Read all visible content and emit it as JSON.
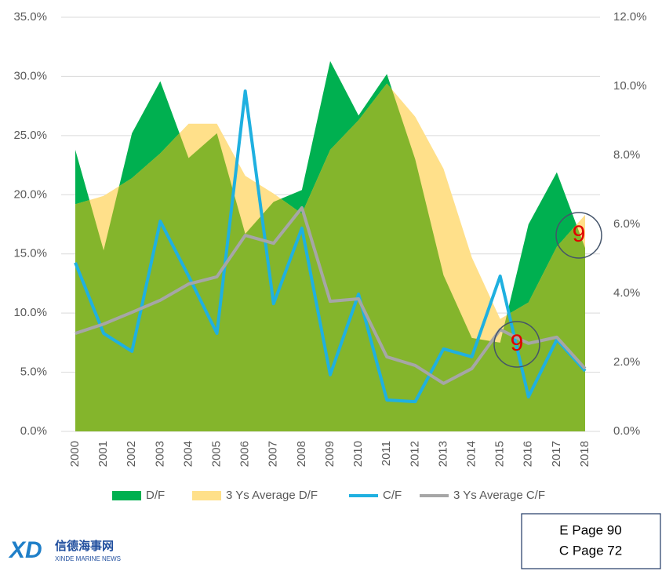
{
  "chart_data": {
    "type": "area-line",
    "categories": [
      "2000",
      "2001",
      "2002",
      "2003",
      "2004",
      "2005",
      "2006",
      "2007",
      "2008",
      "2009",
      "2010",
      "2011",
      "2012",
      "2013",
      "2014",
      "2015",
      "2016",
      "2017",
      "2018"
    ],
    "series": [
      {
        "name": "D/F",
        "kind": "area",
        "axis": "y",
        "color": "#00b050",
        "values": [
          23.8,
          15.3,
          25.2,
          29.6,
          23.1,
          25.2,
          16.7,
          19.4,
          20.4,
          31.3,
          26.7,
          30.2,
          23.0,
          13.2,
          7.9,
          7.5,
          17.5,
          21.9,
          15.5
        ]
      },
      {
        "name": "3 Ys Average D/F",
        "kind": "area",
        "axis": "y",
        "color": "#ffe08a",
        "overlap_color": "#84b52c",
        "values": [
          19.2,
          19.9,
          21.4,
          23.5,
          26.0,
          26.0,
          21.6,
          20.1,
          18.4,
          23.8,
          26.3,
          29.4,
          26.6,
          22.2,
          14.7,
          9.5,
          10.9,
          15.6,
          18.3
        ]
      },
      {
        "name": "C/F",
        "kind": "line",
        "axis": "y2",
        "color": "#1fb0e0",
        "values": [
          4.89,
          2.84,
          2.32,
          6.09,
          4.5,
          2.84,
          9.86,
          3.7,
          5.89,
          1.64,
          3.98,
          0.91,
          0.86,
          2.39,
          2.16,
          4.5,
          1.0,
          2.66,
          1.75
        ]
      },
      {
        "name": "3 Ys Average C/F",
        "kind": "line",
        "axis": "y2",
        "color": "#a6a6a6",
        "values": [
          2.84,
          3.11,
          3.45,
          3.8,
          4.27,
          4.48,
          5.68,
          5.45,
          6.48,
          3.77,
          3.84,
          2.16,
          1.91,
          1.39,
          1.82,
          2.95,
          2.55,
          2.73,
          1.82
        ]
      }
    ],
    "ylim": [
      0,
      35
    ],
    "yticks": [
      {
        "value": 0,
        "label": "0.0%"
      },
      {
        "value": 5,
        "label": "5.0%"
      },
      {
        "value": 10,
        "label": "10.0%"
      },
      {
        "value": 15,
        "label": "15.0%"
      },
      {
        "value": 20,
        "label": "20.0%"
      },
      {
        "value": 25,
        "label": "25.0%"
      },
      {
        "value": 30,
        "label": "30.0%"
      },
      {
        "value": 35,
        "label": "35.0%"
      }
    ],
    "y2lim": [
      0,
      12
    ],
    "y2ticks": [
      {
        "value": 0,
        "label": "0.0%"
      },
      {
        "value": 2,
        "label": "2.0%"
      },
      {
        "value": 4,
        "label": "4.0%"
      },
      {
        "value": 6,
        "label": "6.0%"
      },
      {
        "value": 8,
        "label": "8.0%"
      },
      {
        "value": 10,
        "label": "10.0%"
      },
      {
        "value": 12,
        "label": "12.0%"
      }
    ],
    "grid": true,
    "legend": "bottom",
    "annotations": [
      "9",
      "9"
    ]
  },
  "note_box": [
    "E Page 90",
    "C Page 72"
  ],
  "logo": {
    "cn": "信德海事网",
    "en": "XINDE MARINE NEWS"
  }
}
